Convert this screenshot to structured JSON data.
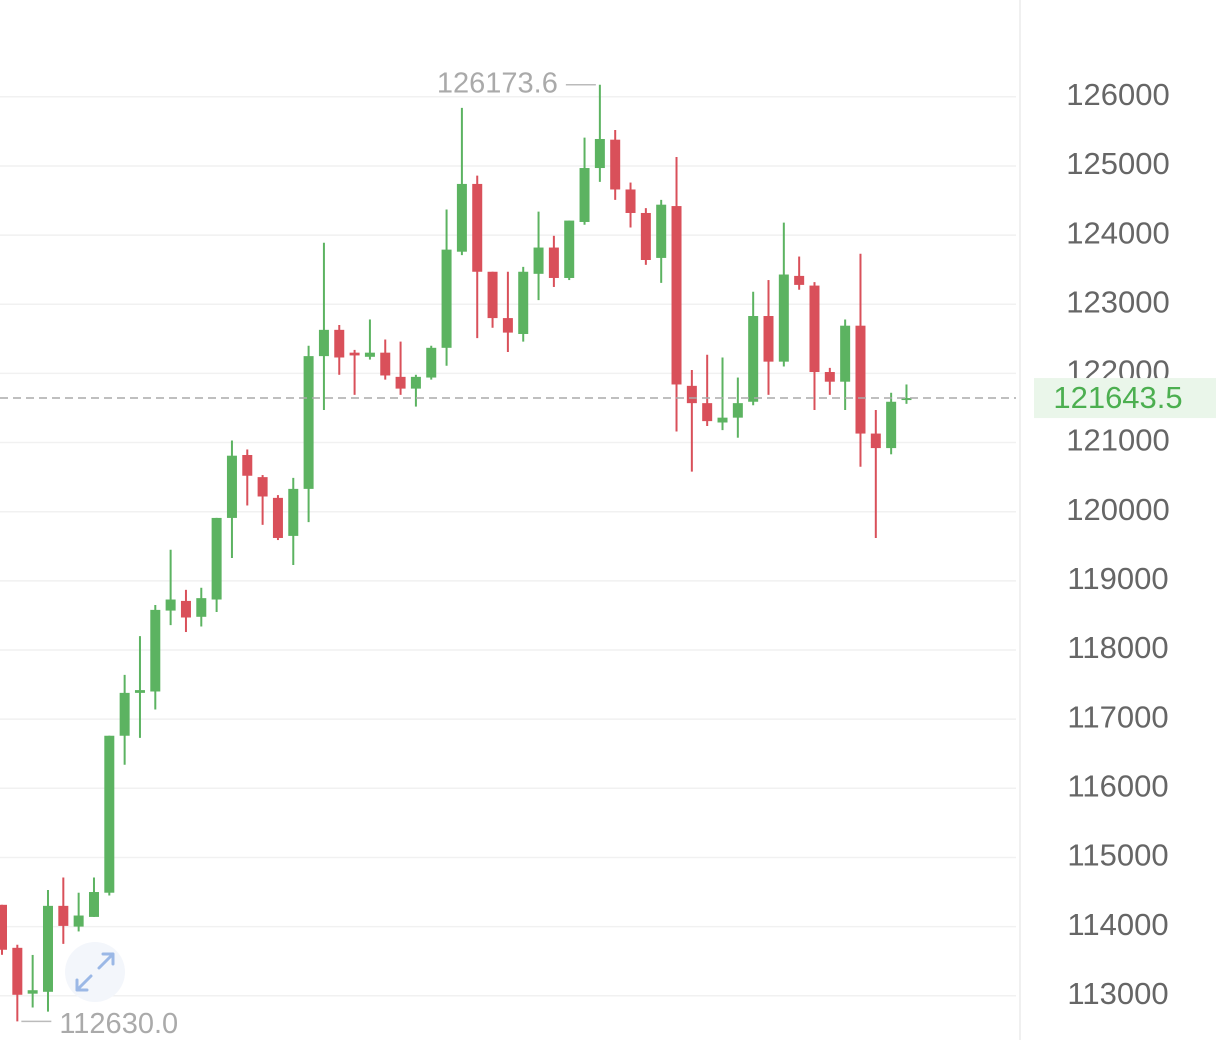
{
  "chart_data": {
    "type": "candlestick",
    "colors": {
      "up": "#5cb361",
      "down": "#d9505a"
    },
    "ylim": [
      112360,
      127400
    ],
    "yticks": [
      113000,
      114000,
      115000,
      116000,
      117000,
      118000,
      119000,
      120000,
      121000,
      122000,
      123000,
      124000,
      125000,
      126000
    ],
    "grid": true,
    "open": [
      114315,
      113693,
      113030,
      113057,
      114300,
      114000,
      114140,
      114490,
      116760,
      117380,
      117400,
      118570,
      118710,
      118480,
      118730,
      119910,
      120820,
      120500,
      120200,
      119650,
      120330,
      122250,
      122630,
      122300,
      122240,
      122300,
      121950,
      121780,
      121940,
      122370,
      123760,
      124740,
      123470,
      122800,
      122570,
      123440,
      123820,
      123380,
      124190,
      124970,
      125380,
      124660,
      124320,
      123670,
      124420,
      121820,
      121570,
      121290,
      121360,
      121590,
      122830,
      122170,
      123410,
      123270,
      122020,
      121880,
      122690,
      121130,
      120920,
      121620
    ],
    "high": [
      114315,
      113737,
      113590,
      114530,
      114710,
      114490,
      114710,
      116760,
      117640,
      118200,
      118650,
      119450,
      118870,
      118900,
      119910,
      121030,
      120900,
      120530,
      120240,
      120490,
      122400,
      123890,
      122700,
      122340,
      122780,
      122490,
      122460,
      121980,
      122400,
      124370,
      125840,
      124860,
      123470,
      123470,
      123540,
      124340,
      123990,
      124210,
      125410,
      126173.6,
      125520,
      124760,
      124390,
      124510,
      125130,
      122050,
      122270,
      122230,
      121940,
      123180,
      123350,
      124180,
      123690,
      123320,
      122080,
      122780,
      123730,
      121470,
      121720,
      121840
    ],
    "low": [
      113592,
      112630,
      112830,
      112770,
      113750,
      113930,
      114140,
      114450,
      116340,
      116730,
      117140,
      118360,
      118260,
      118340,
      118550,
      119330,
      120090,
      119810,
      119590,
      119230,
      119850,
      121470,
      121980,
      121690,
      122200,
      121910,
      121690,
      121520,
      121910,
      122110,
      123710,
      122510,
      122660,
      122310,
      122460,
      123060,
      123250,
      123350,
      124150,
      124770,
      124510,
      124110,
      123570,
      123310,
      121160,
      120580,
      121240,
      121180,
      121070,
      121540,
      121690,
      122100,
      123210,
      121470,
      121690,
      121470,
      120650,
      119620,
      120830,
      121560
    ],
    "close": [
      113665,
      113014,
      113080,
      114300,
      114010,
      114160,
      114500,
      116760,
      117380,
      117420,
      118580,
      118730,
      118470,
      118750,
      119910,
      120810,
      120520,
      120220,
      119620,
      120330,
      122250,
      122630,
      122230,
      122260,
      122300,
      121970,
      121780,
      121950,
      122370,
      123790,
      124740,
      123470,
      122800,
      122590,
      123470,
      123820,
      123380,
      124210,
      124970,
      125390,
      124660,
      124320,
      123640,
      124440,
      121840,
      121570,
      121310,
      121360,
      121570,
      122830,
      122170,
      123430,
      123280,
      122020,
      121880,
      122690,
      121130,
      120920,
      121590,
      121643.5
    ],
    "max_label": {
      "value": 126173.6,
      "label": "126173.6"
    },
    "min_label": {
      "value": 112630,
      "label": "112630.0"
    },
    "last_price": {
      "value": 121643.5,
      "label": "121643.5"
    }
  }
}
